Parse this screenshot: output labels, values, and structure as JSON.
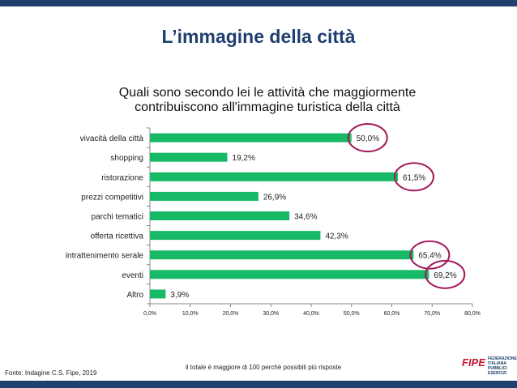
{
  "slide": {
    "title": "L’immagine della città",
    "source": "Fonte: Indagine C.S. Fipe, 2019",
    "note": "il totale è maggiore di 100 perchè possibili più risposte",
    "logo": {
      "mark": "FIPE",
      "text_lines": [
        "FEDERAZIONE",
        "ITALIANA",
        "PUBBLICI",
        "ESERCIZI"
      ]
    }
  },
  "colors": {
    "bar": "#18b966",
    "circle": "#a3195b",
    "title": "#1f3f6e",
    "band": "#1f3f6e"
  },
  "chart_data": {
    "type": "bar",
    "orientation": "horizontal",
    "title": "Quali sono secondo lei le attività che maggiormente contribuiscono all'immagine turistica della città",
    "title_lines": [
      "Quali sono secondo lei le attività che maggiormente",
      "contribuiscono all'immagine turistica della città"
    ],
    "categories": [
      "vivacità della città",
      "shopping",
      "ristorazione",
      "prezzi competitivi",
      "parchi tematici",
      "offerta ricettiva",
      "intrattenimento serale",
      "eventi",
      "Altro"
    ],
    "values": [
      50.0,
      19.2,
      61.5,
      26.9,
      34.6,
      42.3,
      65.4,
      69.2,
      3.9
    ],
    "value_labels": [
      "50,0%",
      "19,2%",
      "61,5%",
      "26,9%",
      "34,6%",
      "42,3%",
      "65,4%",
      "69,2%",
      "3,9%"
    ],
    "highlighted": [
      "vivacità della città",
      "ristorazione",
      "intrattenimento serale",
      "eventi"
    ],
    "xlim": [
      0,
      80
    ],
    "xticks": [
      0,
      10,
      20,
      30,
      40,
      50,
      60,
      70,
      80
    ],
    "xtick_labels": [
      "0,0%",
      "10,0%",
      "20,0%",
      "30,0%",
      "40,0%",
      "50,0%",
      "60,0%",
      "70,0%",
      "80,0%"
    ],
    "grid": false,
    "legend": "none"
  }
}
